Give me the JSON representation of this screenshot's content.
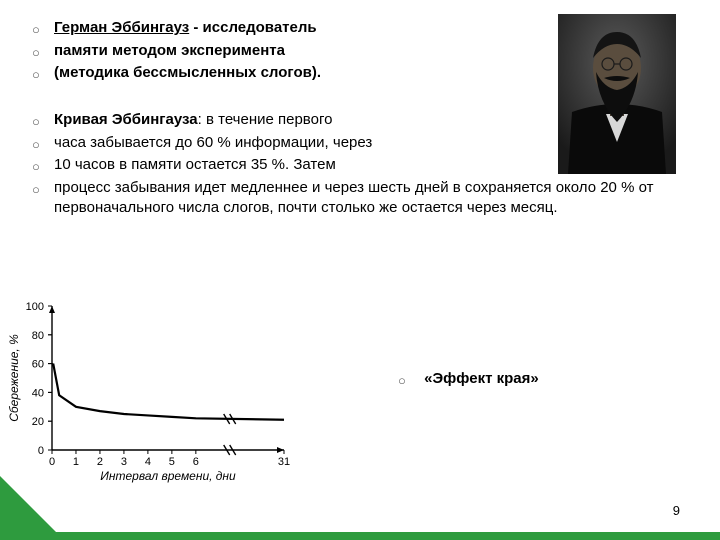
{
  "para1": {
    "lines": [
      {
        "bold": "Герман Эббингауз",
        "text": " - исследователь",
        "underline_bold": true
      },
      {
        "bold": "",
        "text": "памяти методом эксперимента",
        "bold_all": true
      },
      {
        "bold": "",
        "text": "(методика бессмысленных слогов).",
        "bold_all": true
      }
    ]
  },
  "para2": {
    "lines": [
      {
        "pre_bold": "Кривая Эббингауза",
        "post": ": в течение первого"
      },
      {
        "text": "часа забывается до 60 % информации, через"
      },
      {
        "text": "10 часов в памяти остается 35 %. Затем"
      },
      {
        "text": "процесс забывания идет медленнее и через шесть дней в сохраняется около 20 % от первоначального числа слогов, почти столько же остается через месяц."
      }
    ]
  },
  "effect_label": "«Эффект края»",
  "page_number": "9",
  "chart": {
    "type": "line",
    "y_label": "Сбережение, %",
    "x_label": "Интервал времени, дни",
    "ylim": [
      0,
      100
    ],
    "ytick_step": 20,
    "yticks": [
      0,
      20,
      40,
      60,
      80,
      100
    ],
    "xticks": [
      "0",
      "1",
      "2",
      "3",
      "4",
      "5",
      "6",
      "",
      "",
      "31"
    ],
    "xbreak_after": 6,
    "data": [
      {
        "x": 0.05,
        "y": 60
      },
      {
        "x": 0.3,
        "y": 38
      },
      {
        "x": 1,
        "y": 30
      },
      {
        "x": 2,
        "y": 27
      },
      {
        "x": 3,
        "y": 25
      },
      {
        "x": 4,
        "y": 24
      },
      {
        "x": 5,
        "y": 23
      },
      {
        "x": 6,
        "y": 22
      },
      {
        "x": 31,
        "y": 21
      }
    ],
    "line_color": "#000000",
    "line_width": 2.2,
    "axis_color": "#000000",
    "tick_color": "#000000",
    "dash_color": "#000000",
    "bg": "#ffffff",
    "tick_fontsize": 11,
    "label_fontsize": 12,
    "aspect_w": 292,
    "aspect_h": 188
  },
  "photo": {
    "bg": "#1e1e1e",
    "coat": "#0a0a0a",
    "skin": "#4b4235",
    "hair": "#111111",
    "beard": "#0d0d0d",
    "shirt": "#d0d0d0",
    "backdrop": "#3a3a3a"
  },
  "accent_color": "#2e9b3e"
}
